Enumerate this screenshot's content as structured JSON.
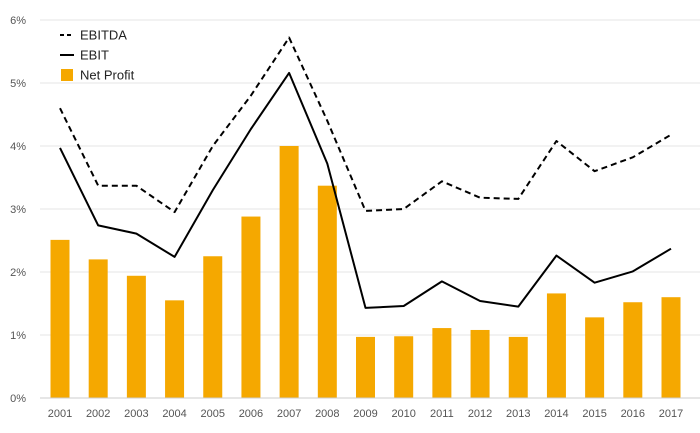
{
  "chart_data": {
    "type": "bar",
    "title": "",
    "xlabel": "",
    "ylabel": "",
    "categories": [
      "2001",
      "2002",
      "2003",
      "2004",
      "2005",
      "2006",
      "2007",
      "2008",
      "2009",
      "2010",
      "2011",
      "2012",
      "2013",
      "2014",
      "2015",
      "2016",
      "2017"
    ],
    "y_tick_labels": [
      "0%",
      "1%",
      "2%",
      "3%",
      "4%",
      "5%",
      "6%"
    ],
    "ylim": [
      0,
      6
    ],
    "grid": true,
    "legend_position": "top-left",
    "series": [
      {
        "name": "EBITDA",
        "kind": "line",
        "style": "dashed",
        "color": "#000000",
        "values": [
          4.6,
          3.37,
          3.37,
          2.95,
          4.0,
          4.8,
          5.72,
          4.4,
          2.97,
          3.0,
          3.44,
          3.18,
          3.16,
          4.08,
          3.6,
          3.82,
          4.18
        ]
      },
      {
        "name": "EBIT",
        "kind": "line",
        "style": "solid",
        "color": "#000000",
        "values": [
          3.97,
          2.74,
          2.61,
          2.24,
          3.3,
          4.27,
          5.16,
          3.72,
          1.43,
          1.46,
          1.85,
          1.54,
          1.45,
          2.26,
          1.83,
          2.01,
          2.37
        ]
      },
      {
        "name": "Net Profit",
        "kind": "bar",
        "color": "#f5a800",
        "values": [
          2.51,
          2.2,
          1.94,
          1.55,
          2.25,
          2.88,
          4.0,
          3.37,
          0.97,
          0.98,
          1.11,
          1.08,
          0.97,
          1.66,
          1.28,
          1.52,
          1.6
        ]
      }
    ]
  }
}
